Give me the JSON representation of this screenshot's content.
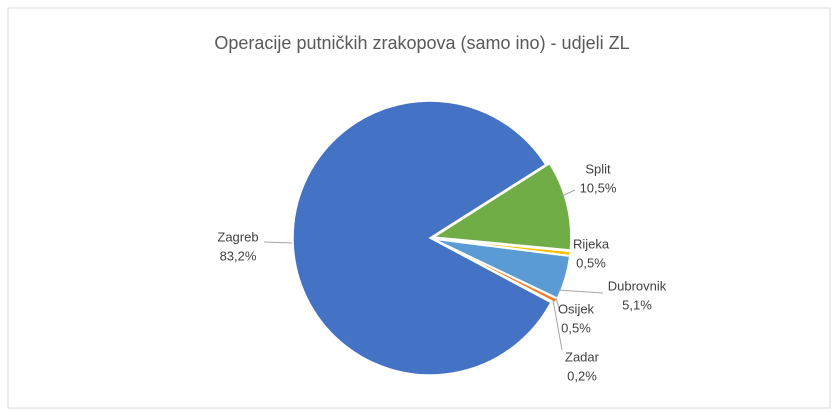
{
  "chart_data": {
    "type": "pie",
    "title": "Operacije putničkih zrakopova (samo ino) - udjeli ZL",
    "categories": [
      "Split",
      "Rijeka",
      "Dubrovnik",
      "Osijek",
      "Zadar",
      "Zagreb"
    ],
    "values": [
      10.5,
      0.5,
      5.1,
      0.5,
      0.2,
      83.2
    ],
    "value_labels": [
      "10,5%",
      "0,5%",
      "5,1%",
      "0,5%",
      "0,2%",
      "83,2%"
    ],
    "colors": [
      "#70ad47",
      "#ffc000",
      "#5b9bd5",
      "#ed7d31",
      "#a5a5a5",
      "#4472c4"
    ]
  }
}
